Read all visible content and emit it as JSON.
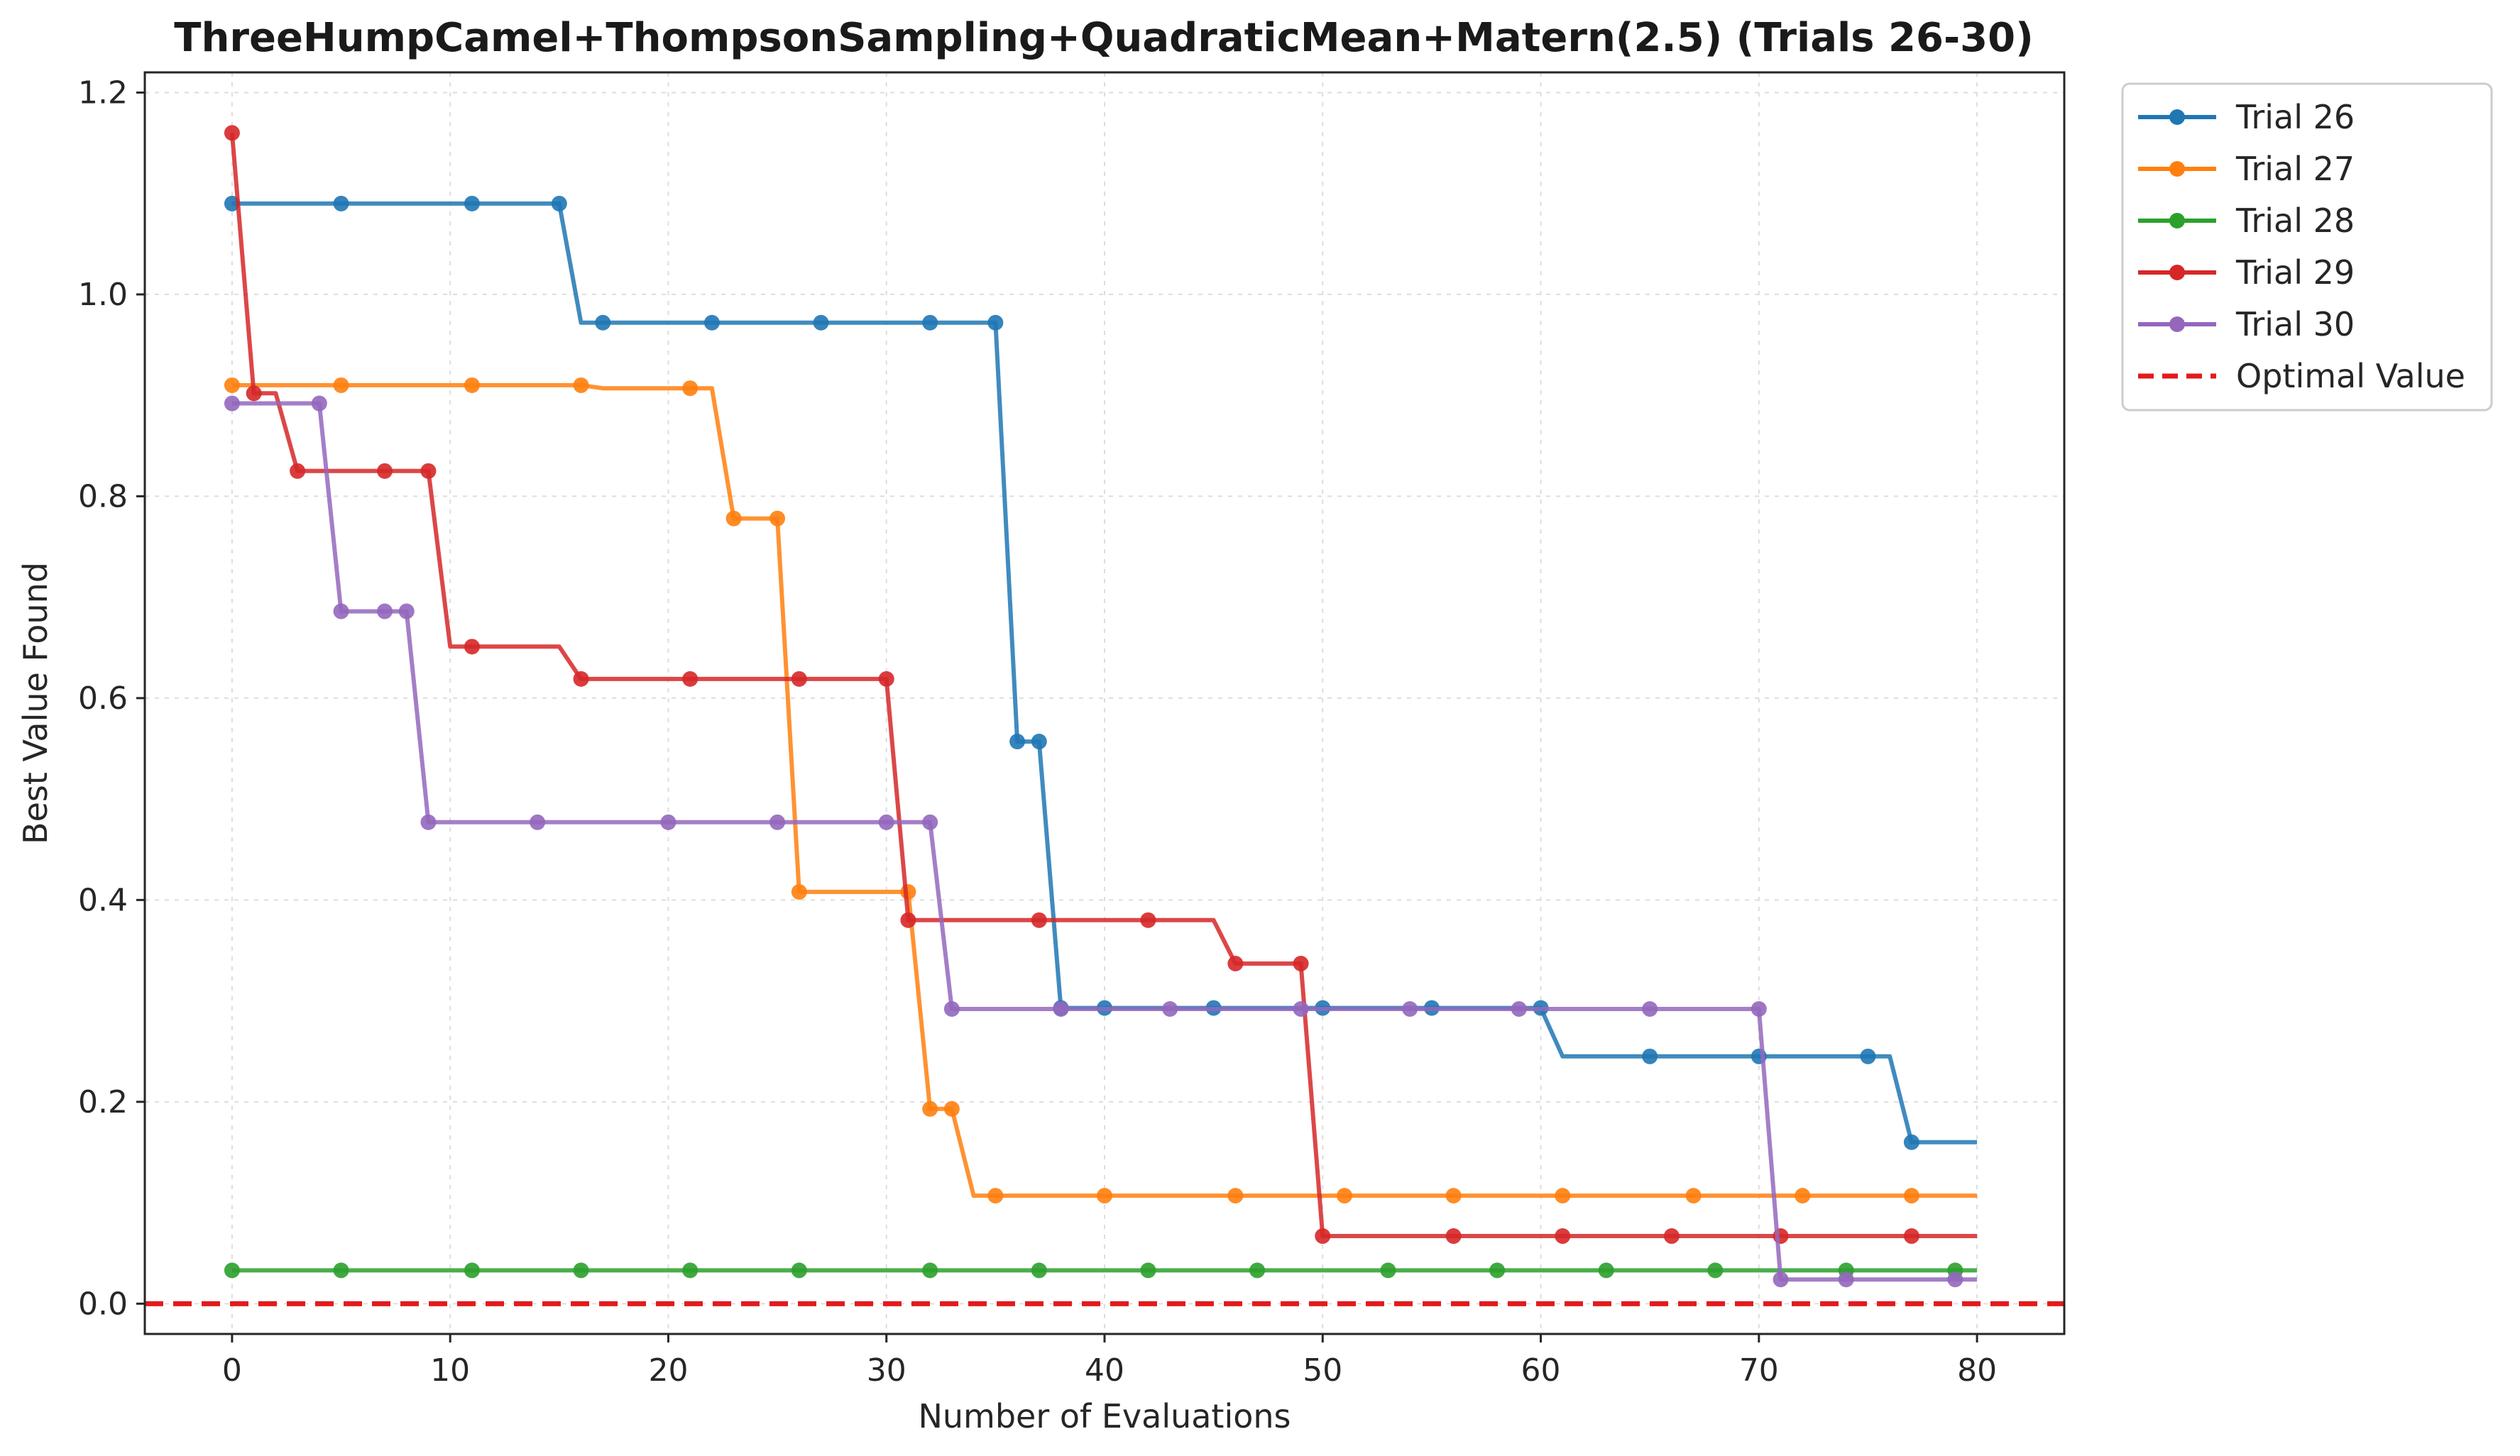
{
  "chart_data": {
    "type": "line",
    "title": "ThreeHumpCamel+ThompsonSampling+QuadraticMean+Matern(2.5) (Trials 26-30)",
    "xlabel": "Number of Evaluations",
    "ylabel": "Best Value Found",
    "xlim": [
      -4,
      84
    ],
    "ylim": [
      -0.03,
      1.22
    ],
    "xticks": [
      0,
      10,
      20,
      30,
      40,
      50,
      60,
      70,
      80
    ],
    "xtick_labels": [
      "0",
      "10",
      "20",
      "30",
      "40",
      "50",
      "60",
      "70",
      "80"
    ],
    "yticks": [
      0.0,
      0.2,
      0.4,
      0.6,
      0.8,
      1.0,
      1.2
    ],
    "ytick_labels": [
      "0.0",
      "0.2",
      "0.4",
      "0.6",
      "0.8",
      "1.0",
      "1.2"
    ],
    "grid": true,
    "legend_position": "outside-top-right",
    "step_style": "step at each evaluation; markers at sampled points",
    "series": [
      {
        "name": "Trial 26",
        "color": "#1f77b4",
        "points": [
          [
            0,
            1.09
          ],
          [
            5,
            1.09
          ],
          [
            11,
            1.09
          ],
          [
            15,
            1.09
          ],
          [
            16,
            0.972
          ],
          [
            17,
            0.972
          ],
          [
            22,
            0.972
          ],
          [
            27,
            0.972
          ],
          [
            32,
            0.972
          ],
          [
            35,
            0.972
          ],
          [
            36,
            0.557
          ],
          [
            37,
            0.557
          ],
          [
            38,
            0.293
          ],
          [
            40,
            0.293
          ],
          [
            45,
            0.293
          ],
          [
            50,
            0.293
          ],
          [
            55,
            0.293
          ],
          [
            60,
            0.293
          ],
          [
            61,
            0.245
          ],
          [
            65,
            0.245
          ],
          [
            70,
            0.245
          ],
          [
            75,
            0.245
          ],
          [
            76,
            0.245
          ],
          [
            77,
            0.16
          ],
          [
            80,
            0.16
          ]
        ],
        "markers_x": [
          0,
          5,
          11,
          15,
          17,
          22,
          27,
          32,
          35,
          36,
          37,
          38,
          40,
          45,
          50,
          55,
          60,
          65,
          70,
          75,
          77
        ]
      },
      {
        "name": "Trial 27",
        "color": "#ff7f0e",
        "points": [
          [
            0,
            0.91
          ],
          [
            5,
            0.91
          ],
          [
            11,
            0.91
          ],
          [
            16,
            0.91
          ],
          [
            17,
            0.907
          ],
          [
            21,
            0.907
          ],
          [
            22,
            0.907
          ],
          [
            23,
            0.778
          ],
          [
            25,
            0.778
          ],
          [
            26,
            0.408
          ],
          [
            31,
            0.408
          ],
          [
            32,
            0.193
          ],
          [
            33,
            0.193
          ],
          [
            34,
            0.107
          ],
          [
            35,
            0.107
          ],
          [
            40,
            0.107
          ],
          [
            46,
            0.107
          ],
          [
            51,
            0.107
          ],
          [
            56,
            0.107
          ],
          [
            61,
            0.107
          ],
          [
            67,
            0.107
          ],
          [
            72,
            0.107
          ],
          [
            77,
            0.107
          ],
          [
            80,
            0.107
          ]
        ],
        "markers_x": [
          0,
          5,
          11,
          16,
          21,
          23,
          25,
          26,
          31,
          32,
          33,
          35,
          40,
          46,
          51,
          56,
          61,
          67,
          72,
          77
        ]
      },
      {
        "name": "Trial 28",
        "color": "#2ca02c",
        "points": [
          [
            0,
            0.033
          ],
          [
            5,
            0.033
          ],
          [
            11,
            0.033
          ],
          [
            16,
            0.033
          ],
          [
            21,
            0.033
          ],
          [
            26,
            0.033
          ],
          [
            32,
            0.033
          ],
          [
            37,
            0.033
          ],
          [
            42,
            0.033
          ],
          [
            47,
            0.033
          ],
          [
            53,
            0.033
          ],
          [
            58,
            0.033
          ],
          [
            63,
            0.033
          ],
          [
            68,
            0.033
          ],
          [
            74,
            0.033
          ],
          [
            79,
            0.033
          ],
          [
            80,
            0.033
          ]
        ],
        "markers_x": [
          0,
          5,
          11,
          16,
          21,
          26,
          32,
          37,
          42,
          47,
          53,
          58,
          63,
          68,
          74,
          79
        ]
      },
      {
        "name": "Trial 29",
        "color": "#d62728",
        "points": [
          [
            0,
            1.16
          ],
          [
            1,
            0.902
          ],
          [
            2,
            0.902
          ],
          [
            3,
            0.825
          ],
          [
            7,
            0.825
          ],
          [
            9,
            0.825
          ],
          [
            10,
            0.651
          ],
          [
            11,
            0.651
          ],
          [
            15,
            0.651
          ],
          [
            16,
            0.619
          ],
          [
            21,
            0.619
          ],
          [
            26,
            0.619
          ],
          [
            30,
            0.619
          ],
          [
            31,
            0.38
          ],
          [
            37,
            0.38
          ],
          [
            42,
            0.38
          ],
          [
            45,
            0.38
          ],
          [
            46,
            0.337
          ],
          [
            49,
            0.337
          ],
          [
            50,
            0.067
          ],
          [
            56,
            0.067
          ],
          [
            61,
            0.067
          ],
          [
            66,
            0.067
          ],
          [
            71,
            0.067
          ],
          [
            77,
            0.067
          ],
          [
            80,
            0.067
          ]
        ],
        "markers_x": [
          0,
          1,
          3,
          7,
          9,
          11,
          16,
          21,
          26,
          30,
          31,
          37,
          42,
          46,
          49,
          50,
          56,
          61,
          66,
          71,
          77
        ]
      },
      {
        "name": "Trial 30",
        "color": "#9467bd",
        "points": [
          [
            0,
            0.892
          ],
          [
            4,
            0.892
          ],
          [
            5,
            0.686
          ],
          [
            7,
            0.686
          ],
          [
            8,
            0.686
          ],
          [
            9,
            0.477
          ],
          [
            14,
            0.477
          ],
          [
            20,
            0.477
          ],
          [
            25,
            0.477
          ],
          [
            30,
            0.477
          ],
          [
            32,
            0.477
          ],
          [
            33,
            0.292
          ],
          [
            38,
            0.292
          ],
          [
            43,
            0.292
          ],
          [
            49,
            0.292
          ],
          [
            54,
            0.292
          ],
          [
            59,
            0.292
          ],
          [
            65,
            0.292
          ],
          [
            70,
            0.292
          ],
          [
            71,
            0.024
          ],
          [
            74,
            0.024
          ],
          [
            79,
            0.024
          ],
          [
            80,
            0.024
          ]
        ],
        "markers_x": [
          0,
          4,
          5,
          7,
          8,
          9,
          14,
          20,
          25,
          30,
          32,
          33,
          38,
          43,
          49,
          54,
          59,
          65,
          70,
          71,
          74,
          79
        ]
      }
    ],
    "reference_line": {
      "name": "Optimal Value",
      "y": 0.0,
      "color": "#e31a1c",
      "style": "dashed"
    }
  }
}
